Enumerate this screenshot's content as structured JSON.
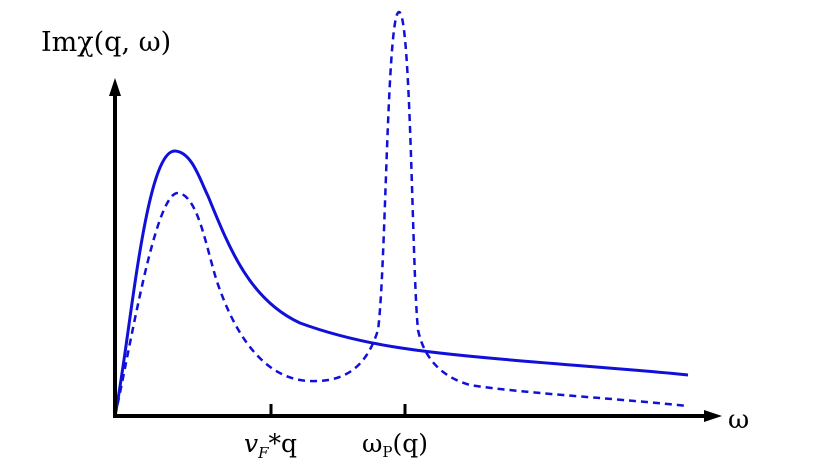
{
  "figure": {
    "y_axis_label": "Imχ(q, ω)",
    "x_axis_label": "ω",
    "tick_1_label": "v",
    "tick_1_subscript": "F",
    "tick_1_suffix": "*q",
    "tick_2_label": "ω",
    "tick_2_subscript": "P",
    "tick_2_suffix": "(q)",
    "colors": {
      "curves": "#1010d8",
      "axes": "#000000"
    },
    "curve_solid_style": "solid",
    "curve_dashed_style": "dashed",
    "icons": {
      "y_arrow": "arrow-up-icon",
      "x_arrow": "arrow-right-icon"
    }
  }
}
